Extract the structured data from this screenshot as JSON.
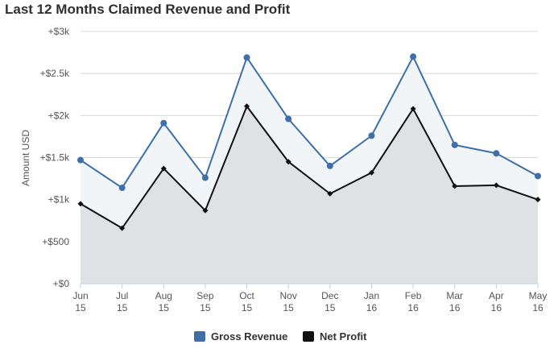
{
  "chart_data": {
    "type": "area",
    "title": "Last 12 Months Claimed Revenue and Profit",
    "xlabel": "",
    "ylabel": "Amount USD",
    "categories": [
      [
        "Jun",
        "15"
      ],
      [
        "Jul",
        "15"
      ],
      [
        "Aug",
        "15"
      ],
      [
        "Sep",
        "15"
      ],
      [
        "Oct",
        "15"
      ],
      [
        "Nov",
        "15"
      ],
      [
        "Dec",
        "15"
      ],
      [
        "Jan",
        "16"
      ],
      [
        "Feb",
        "16"
      ],
      [
        "Mar",
        "16"
      ],
      [
        "Apr",
        "16"
      ],
      [
        "May",
        "16"
      ]
    ],
    "ylim": [
      0,
      3000
    ],
    "yticks": [
      {
        "value": 0,
        "label": "+$0"
      },
      {
        "value": 500,
        "label": "+$500"
      },
      {
        "value": 1000,
        "label": "+$1k"
      },
      {
        "value": 1500,
        "label": "+$1.5k"
      },
      {
        "value": 2000,
        "label": "+$2k"
      },
      {
        "value": 2500,
        "label": "+$2.5k"
      },
      {
        "value": 3000,
        "label": "+$3k"
      }
    ],
    "grid": true,
    "legend_position": "bottom-center",
    "series": [
      {
        "name": "Gross Revenue",
        "color": "#3e6fa9",
        "fill": "#f1f5f8",
        "marker": "circle",
        "values": [
          1470,
          1140,
          1910,
          1260,
          2690,
          1960,
          1400,
          1760,
          2700,
          1650,
          1550,
          1280
        ]
      },
      {
        "name": "Net Profit",
        "color": "#111111",
        "fill": "#e0e1e5",
        "marker": "diamond",
        "values": [
          950,
          660,
          1370,
          870,
          2110,
          1450,
          1070,
          1320,
          2080,
          1160,
          1170,
          1000
        ]
      }
    ]
  }
}
